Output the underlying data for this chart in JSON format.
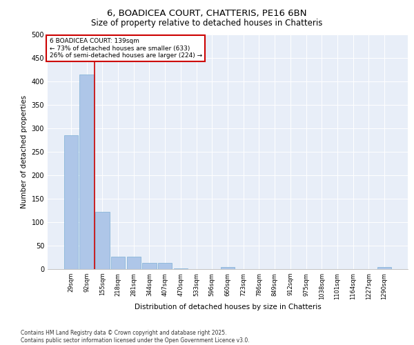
{
  "title_line1": "6, BOADICEA COURT, CHATTERIS, PE16 6BN",
  "title_line2": "Size of property relative to detached houses in Chatteris",
  "xlabel": "Distribution of detached houses by size in Chatteris",
  "ylabel": "Number of detached properties",
  "categories": [
    "29sqm",
    "92sqm",
    "155sqm",
    "218sqm",
    "281sqm",
    "344sqm",
    "407sqm",
    "470sqm",
    "533sqm",
    "596sqm",
    "660sqm",
    "723sqm",
    "786sqm",
    "849sqm",
    "912sqm",
    "975sqm",
    "1038sqm",
    "1101sqm",
    "1164sqm",
    "1227sqm",
    "1290sqm"
  ],
  "values": [
    285,
    415,
    122,
    27,
    27,
    13,
    13,
    2,
    0,
    0,
    5,
    0,
    0,
    0,
    0,
    0,
    0,
    0,
    0,
    0,
    4
  ],
  "bar_color": "#aec6e8",
  "bar_edge_color": "#7bafd4",
  "vline_x": 2.0,
  "vline_color": "#cc0000",
  "annotation_text": "6 BOADICEA COURT: 139sqm\n← 73% of detached houses are smaller (633)\n26% of semi-detached houses are larger (224) →",
  "annotation_box_color": "#ffffff",
  "annotation_box_edge": "#cc0000",
  "ylim": [
    0,
    500
  ],
  "yticks": [
    0,
    50,
    100,
    150,
    200,
    250,
    300,
    350,
    400,
    450,
    500
  ],
  "bg_color": "#e8eef8",
  "footnote": "Contains HM Land Registry data © Crown copyright and database right 2025.\nContains public sector information licensed under the Open Government Licence v3.0.",
  "title_fontsize": 9.5,
  "subtitle_fontsize": 8.5,
  "tick_fontsize": 6,
  "label_fontsize": 7.5,
  "annot_fontsize": 6.5,
  "footnote_fontsize": 5.5
}
